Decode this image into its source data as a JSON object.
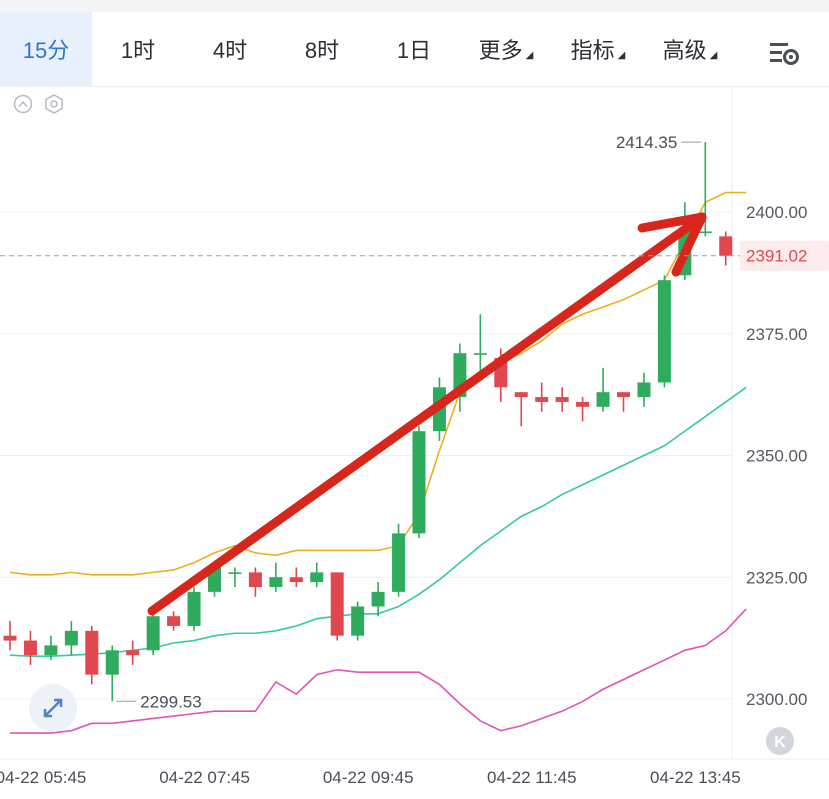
{
  "toolbar": {
    "tabs": [
      {
        "label": "15分",
        "active": true,
        "caret": false
      },
      {
        "label": "1时",
        "active": false,
        "caret": false
      },
      {
        "label": "4时",
        "active": false,
        "caret": false
      },
      {
        "label": "8时",
        "active": false,
        "caret": false
      },
      {
        "label": "1日",
        "active": false,
        "caret": false
      },
      {
        "label": "更多",
        "active": false,
        "caret": true
      },
      {
        "label": "指标",
        "active": false,
        "caret": true
      },
      {
        "label": "高级",
        "active": false,
        "caret": true
      }
    ],
    "settings_icon": "chart-settings-icon"
  },
  "chart_controls": {
    "collapse_icon": "chevron-up-circle-icon",
    "settings_icon": "hexagon-gear-icon",
    "expand_icon": "expand-diagonal-icon",
    "kline_icon": "k-circle-icon"
  },
  "colors": {
    "up": "#2eab5c",
    "down": "#e0474e",
    "ma_fast": "#e8b21a",
    "ma_mid": "#35c9a7",
    "ma_slow": "#e055b5",
    "arrow": "#d7261b",
    "accent": "#2d79c7"
  },
  "chart_data": {
    "type": "candlestick",
    "y_ticks": [
      "2400.00",
      "2375.00",
      "2350.00",
      "2325.00",
      "2300.00"
    ],
    "ylim": [
      2292,
      2422
    ],
    "x_ticks": [
      "04-22 05:45",
      "04-22 07:45",
      "04-22 09:45",
      "04-22 11:45",
      "04-22 13:45"
    ],
    "current_price": "2391.02",
    "current_value": 2391.02,
    "high_label": "2414.35",
    "low_label": "2299.53",
    "candles": [
      {
        "o": 2313,
        "h": 2316,
        "l": 2310,
        "c": 2312
      },
      {
        "o": 2312,
        "h": 2314,
        "l": 2307,
        "c": 2309
      },
      {
        "o": 2309,
        "h": 2313,
        "l": 2308,
        "c": 2311
      },
      {
        "o": 2311,
        "h": 2316,
        "l": 2309,
        "c": 2314
      },
      {
        "o": 2314,
        "h": 2315,
        "l": 2303,
        "c": 2305
      },
      {
        "o": 2305,
        "h": 2311,
        "l": 2299.53,
        "c": 2310
      },
      {
        "o": 2310,
        "h": 2312,
        "l": 2307,
        "c": 2309
      },
      {
        "o": 2310,
        "h": 2318,
        "l": 2309,
        "c": 2317
      },
      {
        "o": 2317,
        "h": 2318,
        "l": 2314,
        "c": 2315
      },
      {
        "o": 2315,
        "h": 2323,
        "l": 2314,
        "c": 2322
      },
      {
        "o": 2322,
        "h": 2328,
        "l": 2321,
        "c": 2327
      },
      {
        "o": 2326,
        "h": 2327,
        "l": 2323,
        "c": 2326
      },
      {
        "o": 2326,
        "h": 2327,
        "l": 2321,
        "c": 2323
      },
      {
        "o": 2323,
        "h": 2328,
        "l": 2322,
        "c": 2325
      },
      {
        "o": 2325,
        "h": 2327,
        "l": 2323,
        "c": 2324
      },
      {
        "o": 2324,
        "h": 2328,
        "l": 2323,
        "c": 2326
      },
      {
        "o": 2326,
        "h": 2326,
        "l": 2312,
        "c": 2313
      },
      {
        "o": 2313,
        "h": 2320,
        "l": 2312,
        "c": 2319
      },
      {
        "o": 2319,
        "h": 2324,
        "l": 2317,
        "c": 2322
      },
      {
        "o": 2322,
        "h": 2336,
        "l": 2321,
        "c": 2334
      },
      {
        "o": 2334,
        "h": 2356,
        "l": 2333,
        "c": 2355
      },
      {
        "o": 2355,
        "h": 2366,
        "l": 2353,
        "c": 2364
      },
      {
        "o": 2362,
        "h": 2373,
        "l": 2359,
        "c": 2371
      },
      {
        "o": 2371,
        "h": 2379,
        "l": 2366,
        "c": 2371
      },
      {
        "o": 2370,
        "h": 2372,
        "l": 2361,
        "c": 2364
      },
      {
        "o": 2363,
        "h": 2363,
        "l": 2356,
        "c": 2362
      },
      {
        "o": 2362,
        "h": 2365,
        "l": 2359,
        "c": 2361
      },
      {
        "o": 2362,
        "h": 2364,
        "l": 2359,
        "c": 2361
      },
      {
        "o": 2361,
        "h": 2362,
        "l": 2357,
        "c": 2360
      },
      {
        "o": 2360,
        "h": 2368,
        "l": 2359,
        "c": 2363
      },
      {
        "o": 2363,
        "h": 2363,
        "l": 2359,
        "c": 2362
      },
      {
        "o": 2362,
        "h": 2367,
        "l": 2360,
        "c": 2365
      },
      {
        "o": 2365,
        "h": 2387,
        "l": 2364,
        "c": 2386
      },
      {
        "o": 2387,
        "h": 2402,
        "l": 2386,
        "c": 2396
      },
      {
        "o": 2396,
        "h": 2414.35,
        "l": 2395,
        "c": 2396
      },
      {
        "o": 2395,
        "h": 2396,
        "l": 2389,
        "c": 2391.02
      }
    ],
    "ma_fast": [
      2326,
      2325.5,
      2325.5,
      2326,
      2325.5,
      2325.5,
      2325.5,
      2326,
      2326.5,
      2328,
      2330,
      2331.5,
      2330,
      2329.5,
      2330.5,
      2330.5,
      2330.5,
      2330.5,
      2330.5,
      2331.5,
      2338,
      2351,
      2363,
      2367,
      2369,
      2371,
      2373.5,
      2377,
      2379,
      2380.5,
      2382,
      2384,
      2386,
      2394,
      2402,
      2404,
      2404
    ],
    "ma_mid": [
      2309,
      2308.8,
      2308.8,
      2309,
      2309.2,
      2309.5,
      2310,
      2310.5,
      2311.5,
      2312,
      2313,
      2313.5,
      2313.5,
      2314,
      2315,
      2316.5,
      2317,
      2317.5,
      2317.5,
      2319,
      2321.5,
      2324.5,
      2328,
      2331.5,
      2334.5,
      2337.5,
      2339.5,
      2342,
      2344,
      2346,
      2348,
      2350,
      2352,
      2355,
      2358,
      2361,
      2364
    ],
    "ma_slow": [
      2293,
      2293,
      2293,
      2293.5,
      2295,
      2295,
      2295.5,
      2296,
      2296.5,
      2297,
      2297.5,
      2297.5,
      2297.5,
      2303.5,
      2301,
      2305,
      2306,
      2305.5,
      2305.5,
      2305.5,
      2305.5,
      2303,
      2299,
      2295.5,
      2293.5,
      2294.5,
      2296,
      2297.5,
      2299.5,
      2302,
      2304,
      2306,
      2308,
      2310,
      2311,
      2314,
      2318.5
    ]
  }
}
